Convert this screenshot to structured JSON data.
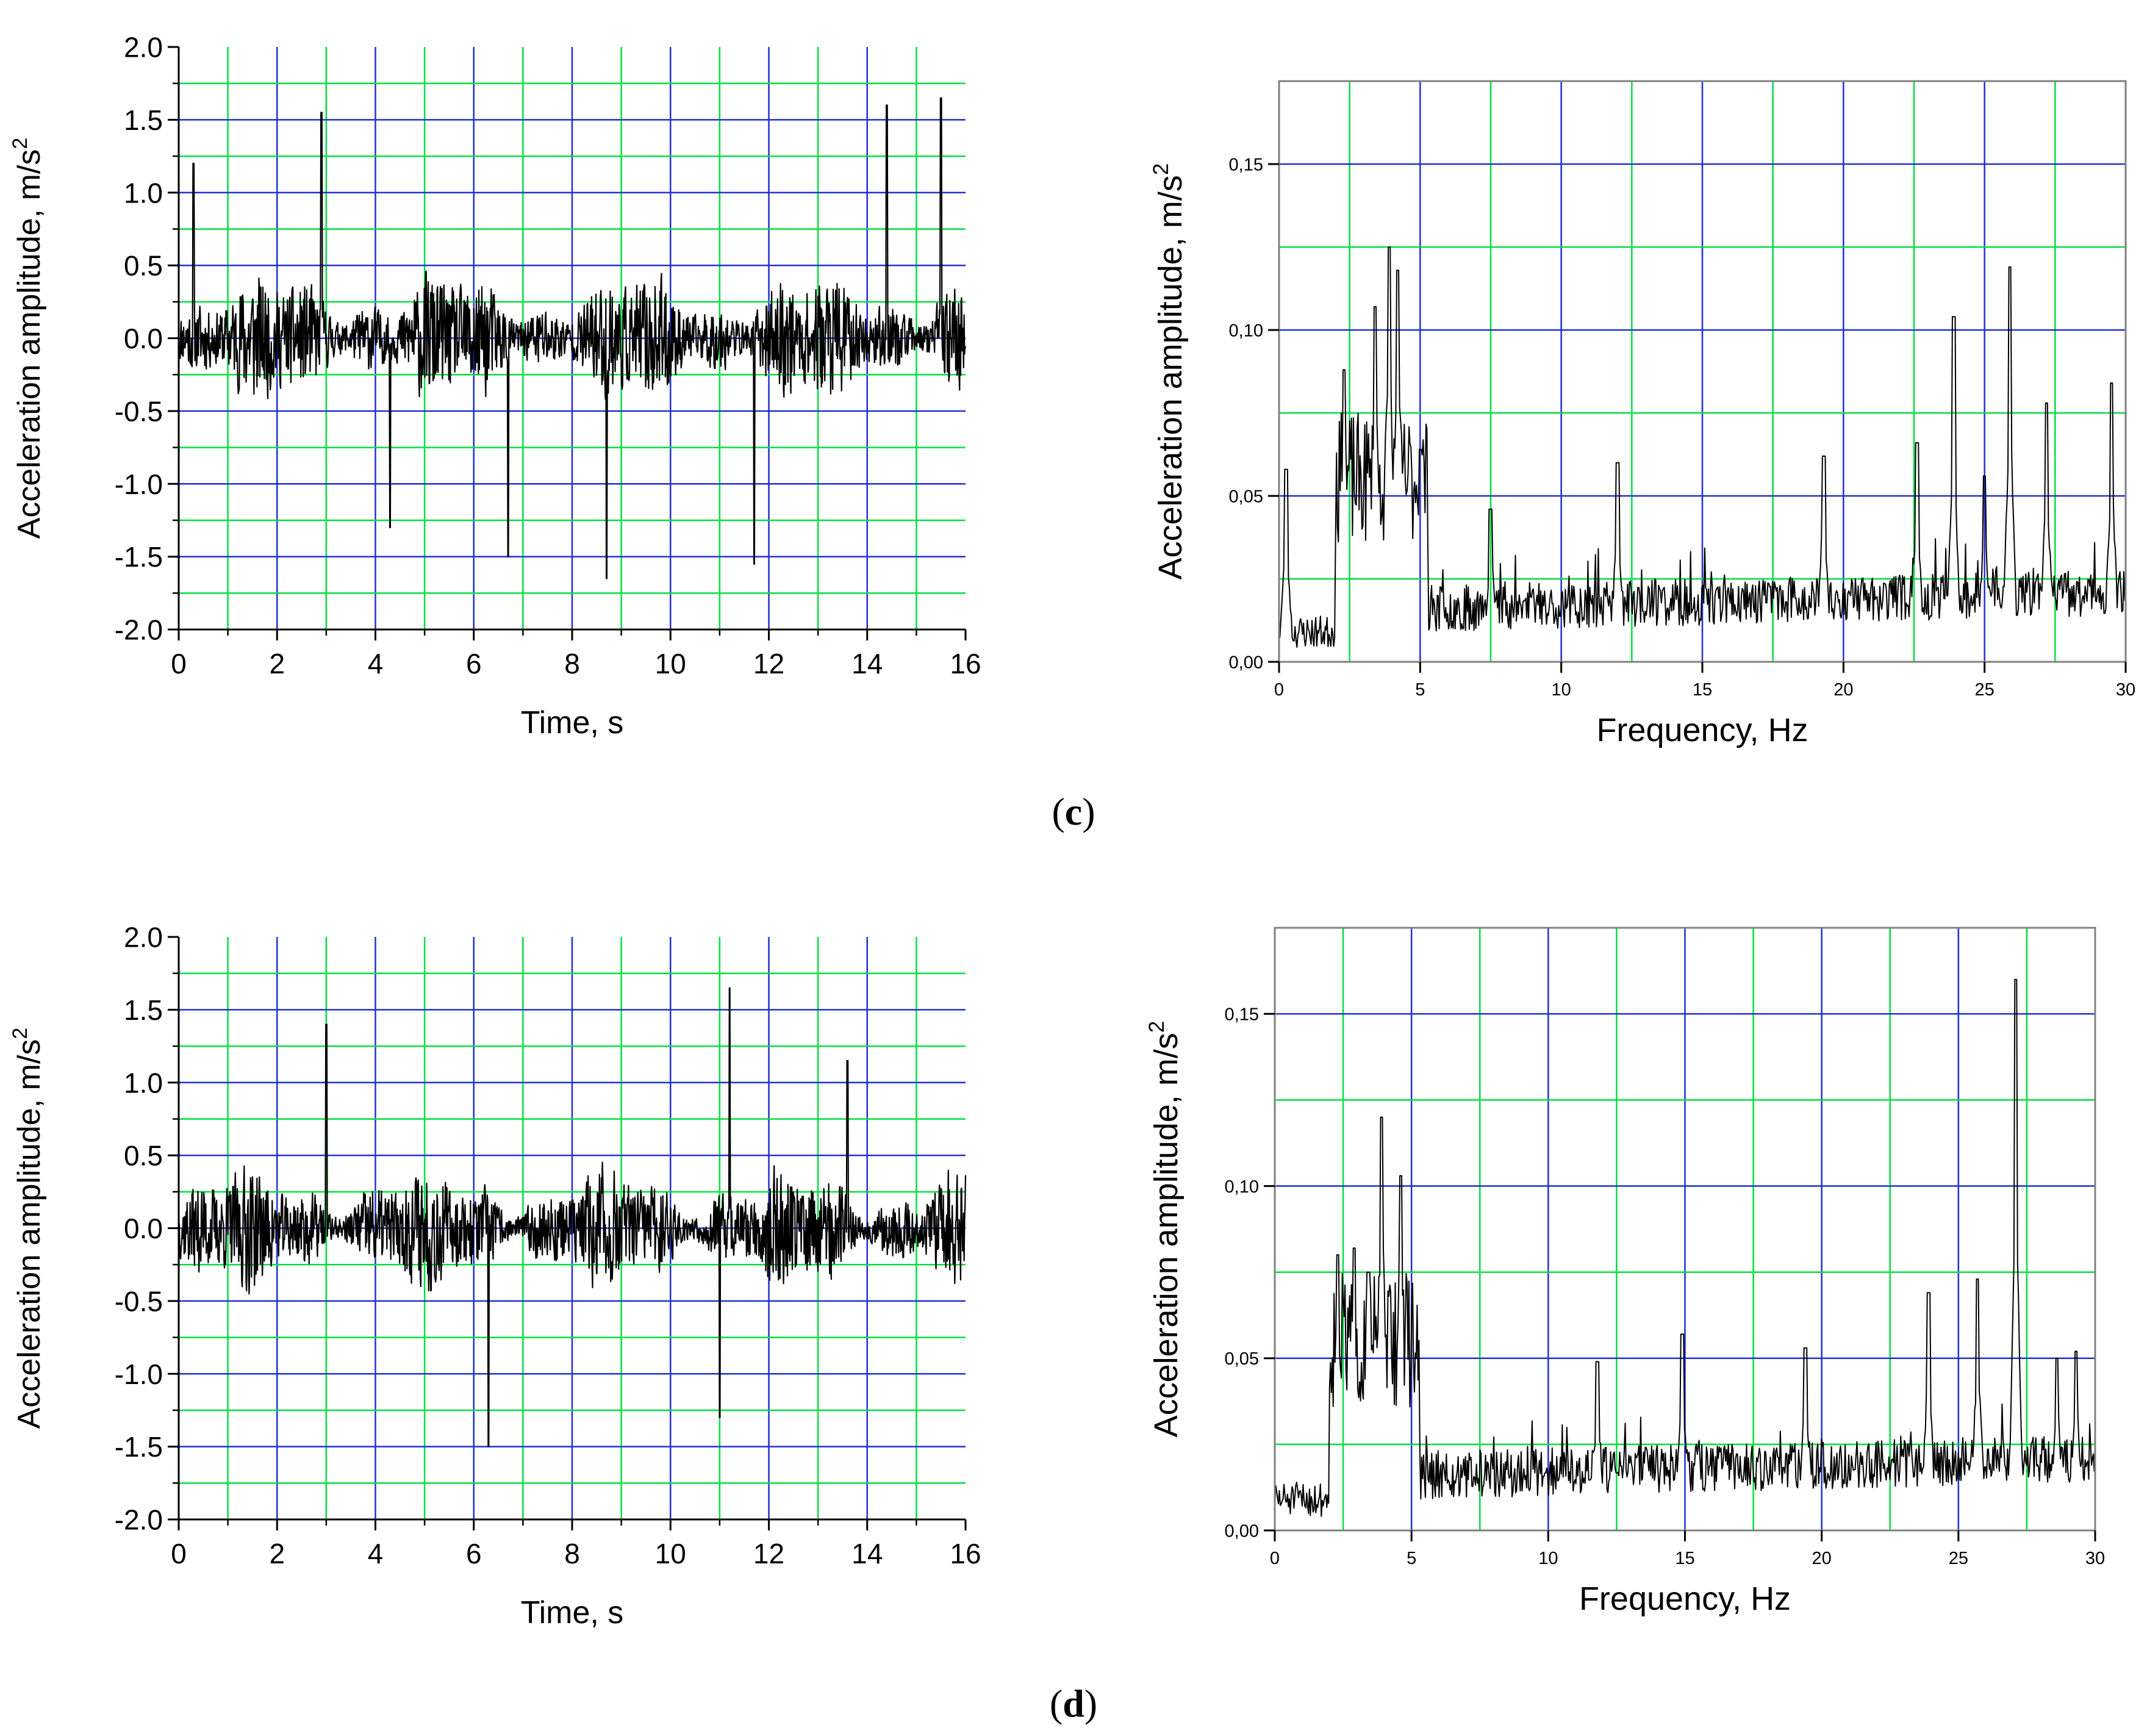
{
  "figure": {
    "panel_labels": [
      {
        "open": "(",
        "letter": "c",
        "close": ")"
      },
      {
        "open": "(",
        "letter": "d",
        "close": ")"
      }
    ]
  },
  "colors": {
    "green_grid": "#00e040",
    "blue_grid": "#2030d0",
    "signal": "#000000",
    "axis": "#000000"
  },
  "chart_data": [
    {
      "id": "c-time",
      "type": "line",
      "panel": "c",
      "title": "",
      "xlabel": "Time, s",
      "ylabel": "Acceleration amplitude, m/s",
      "ylabel_sup": "2",
      "xlim": [
        0,
        16
      ],
      "ylim": [
        -2.0,
        2.0
      ],
      "xticks": [
        0,
        2,
        4,
        6,
        8,
        10,
        12,
        14,
        16
      ],
      "xtick_labels": [
        "0",
        "2",
        "4",
        "6",
        "8",
        "10",
        "12",
        "14",
        "16"
      ],
      "yticks": [
        -2.0,
        -1.5,
        -1.0,
        -0.5,
        0.0,
        0.5,
        1.0,
        1.5,
        2.0
      ],
      "ytick_labels": [
        "-2.0",
        "-1.5",
        "-1.0",
        "-0.5",
        "0.0",
        "0.5",
        "1.0",
        "1.5",
        "2.0"
      ],
      "grid": true,
      "series": [
        {
          "name": "acceleration",
          "seed": 11,
          "n": 1600,
          "x_range": [
            0,
            16
          ],
          "envelope": 0.62,
          "spikes": [
            [
              0.3,
              1.2
            ],
            [
              2.9,
              1.55
            ],
            [
              4.3,
              -1.3
            ],
            [
              6.7,
              -1.5
            ],
            [
              8.7,
              -1.65
            ],
            [
              11.7,
              -1.55
            ],
            [
              14.4,
              1.6
            ],
            [
              15.5,
              1.65
            ]
          ]
        }
      ]
    },
    {
      "id": "c-freq",
      "type": "line",
      "panel": "c",
      "title": "",
      "xlabel": "Frequency, Hz",
      "ylabel": "Acceleration amplitude, m/s",
      "ylabel_sup": "2",
      "xlim": [
        0,
        30
      ],
      "ylim": [
        0,
        0.175
      ],
      "xticks": [
        0,
        5,
        10,
        15,
        20,
        25,
        30
      ],
      "xtick_labels": [
        "0",
        "5",
        "10",
        "15",
        "20",
        "25",
        "30"
      ],
      "yticks": [
        0.0,
        0.05,
        0.1,
        0.15
      ],
      "ytick_labels": [
        "0,00",
        "0,05",
        "0,10",
        "0,15"
      ],
      "grid": true,
      "series": [
        {
          "name": "spectrum",
          "seed": 23,
          "n": 900,
          "x_range": [
            0,
            30
          ],
          "peaks": [
            [
              0.25,
              0.058
            ],
            [
              2.3,
              0.088
            ],
            [
              3.4,
              0.107
            ],
            [
              3.9,
              0.125
            ],
            [
              4.2,
              0.118
            ],
            [
              5.0,
              0.064
            ],
            [
              7.5,
              0.046
            ],
            [
              12.0,
              0.06
            ],
            [
              19.3,
              0.062
            ],
            [
              22.6,
              0.066
            ],
            [
              23.9,
              0.104
            ],
            [
              25.0,
              0.056
            ],
            [
              25.9,
              0.119
            ],
            [
              27.2,
              0.078
            ],
            [
              29.5,
              0.084
            ]
          ]
        }
      ]
    },
    {
      "id": "d-time",
      "type": "line",
      "panel": "d",
      "title": "",
      "xlabel": "Time, s",
      "ylabel": "Acceleration amplitude, m/s",
      "ylabel_sup": "2",
      "xlim": [
        0,
        16
      ],
      "ylim": [
        -2.0,
        2.0
      ],
      "xticks": [
        0,
        2,
        4,
        6,
        8,
        10,
        12,
        14,
        16
      ],
      "xtick_labels": [
        "0",
        "2",
        "4",
        "6",
        "8",
        "10",
        "12",
        "14",
        "16"
      ],
      "yticks": [
        -2.0,
        -1.5,
        -1.0,
        -0.5,
        0.0,
        0.5,
        1.0,
        1.5,
        2.0
      ],
      "ytick_labels": [
        "-2.0",
        "-1.5",
        "-1.0",
        "-0.5",
        "0.0",
        "0.5",
        "1.0",
        "1.5",
        "2.0"
      ],
      "grid": true,
      "series": [
        {
          "name": "acceleration",
          "seed": 37,
          "n": 1600,
          "x_range": [
            0,
            16
          ],
          "envelope": 0.58,
          "spikes": [
            [
              3.0,
              1.4
            ],
            [
              6.3,
              -1.5
            ],
            [
              11.2,
              1.65
            ],
            [
              11.0,
              -1.3
            ],
            [
              13.6,
              1.15
            ]
          ]
        }
      ]
    },
    {
      "id": "d-freq",
      "type": "line",
      "panel": "d",
      "title": "",
      "xlabel": "Frequency, Hz",
      "ylabel": "Acceleration amplitude, m/s",
      "ylabel_sup": "2",
      "xlim": [
        0,
        30
      ],
      "ylim": [
        0,
        0.175
      ],
      "xticks": [
        0,
        5,
        10,
        15,
        20,
        25,
        30
      ],
      "xtick_labels": [
        "0",
        "5",
        "10",
        "15",
        "20",
        "25",
        "30"
      ],
      "yticks": [
        0.0,
        0.05,
        0.1,
        0.15
      ],
      "ytick_labels": [
        "0,00",
        "0,05",
        "0,10",
        "0,15"
      ],
      "grid": true,
      "series": [
        {
          "name": "spectrum",
          "seed": 51,
          "n": 900,
          "x_range": [
            0,
            30
          ],
          "peaks": [
            [
              2.3,
              0.08
            ],
            [
              2.9,
              0.082
            ],
            [
              3.4,
              0.075
            ],
            [
              3.9,
              0.12
            ],
            [
              4.6,
              0.103
            ],
            [
              11.8,
              0.049
            ],
            [
              14.9,
              0.057
            ],
            [
              19.4,
              0.053
            ],
            [
              23.9,
              0.069
            ],
            [
              25.7,
              0.073
            ],
            [
              27.1,
              0.16
            ],
            [
              28.6,
              0.05
            ],
            [
              29.3,
              0.052
            ]
          ]
        }
      ]
    }
  ]
}
